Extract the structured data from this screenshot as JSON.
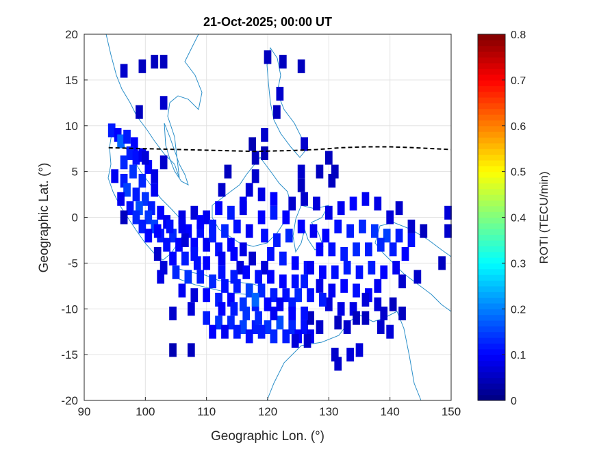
{
  "chart_data": {
    "type": "heatmap",
    "title": "21-Oct-2025; 00:00 UT",
    "xlabel": "Geographic Lon. (°)",
    "ylabel": "Geographic Lat. (°)",
    "xlim": [
      90,
      150
    ],
    "ylim": [
      -20,
      20
    ],
    "x_ticks": [
      "90",
      "100",
      "110",
      "120",
      "130",
      "140",
      "150"
    ],
    "y_ticks": [
      "20",
      "15",
      "10",
      "5",
      "0",
      "-5",
      "-10",
      "-15",
      "-20"
    ],
    "grid": true,
    "colorbar": {
      "label": "ROTI (TECU/min)",
      "range": [
        0,
        0.8
      ],
      "ticks": [
        "0.8",
        "0.7",
        "0.6",
        "0.5",
        "0.4",
        "0.3",
        "0.2",
        "0.1",
        "0"
      ],
      "colormap": "jet"
    },
    "colors": {
      "coastline": "#2b8fc9",
      "equator_line": "#000000",
      "grid": "#e3e3e3"
    },
    "dip_equator": {
      "style": "dashed",
      "lon": [
        94,
        100,
        106,
        112,
        118,
        124,
        128,
        132,
        136,
        140,
        144,
        150
      ],
      "lat": [
        7.6,
        7.5,
        7.4,
        7.3,
        7.2,
        7.3,
        7.4,
        7.6,
        7.7,
        7.7,
        7.6,
        7.4
      ]
    },
    "cell_size_deg": [
      1.2,
      1.5
    ],
    "cells": [
      [
        94.5,
        9.5,
        0.12
      ],
      [
        95.5,
        9.0,
        0.1
      ],
      [
        96.0,
        8.3,
        0.18
      ],
      [
        97.0,
        8.8,
        0.12
      ],
      [
        98.2,
        8.0,
        0.1
      ],
      [
        97.5,
        7.0,
        0.12
      ],
      [
        98.5,
        6.5,
        0.11
      ],
      [
        96.5,
        6.0,
        0.13
      ],
      [
        99.5,
        6.8,
        0.09
      ],
      [
        100.5,
        5.5,
        0.1
      ],
      [
        98.0,
        5.0,
        0.14
      ],
      [
        96.5,
        4.0,
        0.12
      ],
      [
        95.0,
        4.5,
        0.09
      ],
      [
        99.5,
        4.0,
        0.13
      ],
      [
        101.5,
        4.5,
        0.08
      ],
      [
        97.0,
        3.0,
        0.15
      ],
      [
        98.5,
        2.5,
        0.12
      ],
      [
        96.0,
        2.0,
        0.09
      ],
      [
        100.0,
        2.0,
        0.14
      ],
      [
        97.5,
        1.0,
        0.11
      ],
      [
        99.0,
        1.0,
        0.16
      ],
      [
        101.0,
        1.0,
        0.12
      ],
      [
        96.5,
        0.0,
        0.05
      ],
      [
        98.5,
        0.0,
        0.13
      ],
      [
        100.5,
        0.0,
        0.14
      ],
      [
        102.5,
        0.5,
        0.1
      ],
      [
        99.5,
        -1.0,
        0.12
      ],
      [
        101.5,
        -1.0,
        0.15
      ],
      [
        103.5,
        -0.5,
        0.09
      ],
      [
        100.5,
        -2.0,
        0.1
      ],
      [
        102.5,
        -2.0,
        0.12
      ],
      [
        104.5,
        -2.0,
        0.13
      ],
      [
        103.5,
        -3.0,
        0.11
      ],
      [
        105.5,
        -3.0,
        0.1
      ],
      [
        102.0,
        -4.0,
        0.06
      ],
      [
        104.5,
        -4.5,
        0.1
      ],
      [
        106.5,
        -4.5,
        0.12
      ],
      [
        108.5,
        -5.0,
        0.11
      ],
      [
        103.0,
        -5.5,
        0.07
      ],
      [
        105.0,
        -6.0,
        0.13
      ],
      [
        107.0,
        -6.5,
        0.14
      ],
      [
        109.0,
        -6.5,
        0.12
      ],
      [
        111.0,
        -7.0,
        0.13
      ],
      [
        113.0,
        -7.5,
        0.11
      ],
      [
        115.0,
        -7.5,
        0.12
      ],
      [
        117.0,
        -8.0,
        0.15
      ],
      [
        119.0,
        -8.0,
        0.13
      ],
      [
        121.0,
        -8.5,
        0.12
      ],
      [
        123.0,
        -8.5,
        0.11
      ],
      [
        125.0,
        -8.5,
        0.13
      ],
      [
        106.0,
        -8.0,
        0.09
      ],
      [
        108.0,
        -8.5,
        0.07
      ],
      [
        110.0,
        -8.5,
        0.1
      ],
      [
        112.0,
        -9.0,
        0.12
      ],
      [
        114.0,
        -9.0,
        0.1
      ],
      [
        116.0,
        -9.5,
        0.14
      ],
      [
        118.0,
        -9.5,
        0.12
      ],
      [
        120.0,
        -9.5,
        0.1
      ],
      [
        122.0,
        -9.5,
        0.09
      ],
      [
        124.0,
        -9.5,
        0.12
      ],
      [
        104.5,
        -10.5,
        0.06
      ],
      [
        107.5,
        -10.0,
        0.07
      ],
      [
        102.5,
        -6.5,
        0.08
      ],
      [
        110.0,
        -11.0,
        0.12
      ],
      [
        112.0,
        -11.5,
        0.14
      ],
      [
        114.0,
        -11.5,
        0.13
      ],
      [
        116.0,
        -12.0,
        0.15
      ],
      [
        118.0,
        -12.0,
        0.12
      ],
      [
        120.0,
        -12.0,
        0.14
      ],
      [
        122.0,
        -11.5,
        0.16
      ],
      [
        124.0,
        -12.0,
        0.13
      ],
      [
        126.0,
        -12.0,
        0.11
      ],
      [
        111.0,
        -12.5,
        0.1
      ],
      [
        113.0,
        -12.5,
        0.09
      ],
      [
        115.0,
        -12.5,
        0.12
      ],
      [
        117.0,
        -13.0,
        0.11
      ],
      [
        119.0,
        -12.5,
        0.12
      ],
      [
        121.0,
        -13.0,
        0.13
      ],
      [
        123.0,
        -13.0,
        0.12
      ],
      [
        125.0,
        -13.0,
        0.1
      ],
      [
        127.0,
        -13.0,
        0.09
      ],
      [
        124.5,
        -13.5,
        0.07
      ],
      [
        104.5,
        -14.5,
        0.04
      ],
      [
        107.5,
        -14.5,
        0.05
      ],
      [
        106.0,
        0.0,
        0.08
      ],
      [
        108.0,
        0.5,
        0.07
      ],
      [
        110.0,
        0.0,
        0.09
      ],
      [
        112.0,
        1.0,
        0.1
      ],
      [
        114.0,
        0.5,
        0.12
      ],
      [
        116.0,
        1.0,
        0.08
      ],
      [
        107.0,
        -1.5,
        0.1
      ],
      [
        109.0,
        -1.5,
        0.11
      ],
      [
        111.0,
        -1.0,
        0.12
      ],
      [
        113.0,
        -1.5,
        0.13
      ],
      [
        115.0,
        -1.0,
        0.11
      ],
      [
        117.0,
        -1.5,
        0.09
      ],
      [
        108.0,
        -3.0,
        0.1
      ],
      [
        110.0,
        -3.0,
        0.09
      ],
      [
        112.0,
        -3.5,
        0.11
      ],
      [
        114.0,
        -3.0,
        0.1
      ],
      [
        116.0,
        -3.5,
        0.08
      ],
      [
        106.5,
        -2.5,
        0.07
      ],
      [
        119.0,
        0.0,
        0.1
      ],
      [
        121.0,
        0.5,
        0.12
      ],
      [
        123.0,
        0.0,
        0.1
      ],
      [
        119.5,
        -2.0,
        0.11
      ],
      [
        121.5,
        -2.5,
        0.12
      ],
      [
        123.5,
        -2.0,
        0.13
      ],
      [
        125.5,
        -1.0,
        0.1
      ],
      [
        120.5,
        -4.0,
        0.11
      ],
      [
        122.5,
        -4.5,
        0.12
      ],
      [
        124.5,
        -5.0,
        0.1
      ],
      [
        126.5,
        -5.5,
        0.11
      ],
      [
        119.5,
        -5.5,
        0.07
      ],
      [
        117.5,
        -4.5,
        0.06
      ],
      [
        117.0,
        3.0,
        0.07
      ],
      [
        119.0,
        2.5,
        0.08
      ],
      [
        121.0,
        2.0,
        0.1
      ],
      [
        118.0,
        4.5,
        0.06
      ],
      [
        118.0,
        6.5,
        0.05
      ],
      [
        117.5,
        8.0,
        0.04
      ],
      [
        119.5,
        9.0,
        0.06
      ],
      [
        112.5,
        3.0,
        0.06
      ],
      [
        113.5,
        5.0,
        0.05
      ],
      [
        116.0,
        1.5,
        0.09
      ],
      [
        115.5,
        -5.5,
        0.07
      ],
      [
        127.5,
        -1.5,
        0.09
      ],
      [
        129.5,
        -2.0,
        0.1
      ],
      [
        131.5,
        -1.0,
        0.11
      ],
      [
        133.5,
        -1.5,
        0.12
      ],
      [
        135.5,
        -1.0,
        0.13
      ],
      [
        137.5,
        -1.5,
        0.14
      ],
      [
        139.5,
        -2.0,
        0.15
      ],
      [
        141.5,
        -2.0,
        0.12
      ],
      [
        143.5,
        -2.5,
        0.11
      ],
      [
        128.5,
        -3.5,
        0.1
      ],
      [
        130.5,
        -3.5,
        0.11
      ],
      [
        132.5,
        -4.0,
        0.12
      ],
      [
        134.5,
        -3.5,
        0.13
      ],
      [
        136.5,
        -3.5,
        0.12
      ],
      [
        138.5,
        -3.0,
        0.13
      ],
      [
        140.5,
        -3.5,
        0.12
      ],
      [
        142.5,
        -4.0,
        0.1
      ],
      [
        127.0,
        -5.5,
        0.09
      ],
      [
        129.0,
        -6.0,
        0.1
      ],
      [
        131.0,
        -6.0,
        0.11
      ],
      [
        133.0,
        -5.5,
        0.12
      ],
      [
        135.0,
        -6.0,
        0.11
      ],
      [
        137.0,
        -5.5,
        0.12
      ],
      [
        139.0,
        -6.0,
        0.1
      ],
      [
        141.0,
        -5.5,
        0.09
      ],
      [
        128.5,
        -7.5,
        0.08
      ],
      [
        130.5,
        -8.0,
        0.09
      ],
      [
        132.5,
        -7.5,
        0.1
      ],
      [
        134.5,
        -8.0,
        0.11
      ],
      [
        136.5,
        -8.5,
        0.1
      ],
      [
        138.0,
        -7.5,
        0.09
      ],
      [
        130.0,
        -9.5,
        0.07
      ],
      [
        132.0,
        -10.0,
        0.08
      ],
      [
        134.0,
        -10.0,
        0.08
      ],
      [
        136.0,
        -9.0,
        0.07
      ],
      [
        138.0,
        -9.5,
        0.07
      ],
      [
        130.0,
        0.5,
        0.08
      ],
      [
        132.0,
        1.0,
        0.09
      ],
      [
        134.0,
        1.5,
        0.1
      ],
      [
        136.0,
        2.0,
        0.09
      ],
      [
        138.0,
        1.5,
        0.08
      ],
      [
        140.0,
        0.0,
        0.07
      ],
      [
        128.0,
        1.5,
        0.07
      ],
      [
        126.0,
        2.0,
        0.06
      ],
      [
        124.0,
        1.5,
        0.06
      ],
      [
        141.5,
        1.0,
        0.06
      ],
      [
        143.5,
        -1.0,
        0.06
      ],
      [
        145.5,
        -1.5,
        0.05
      ],
      [
        149.5,
        0.5,
        0.07
      ],
      [
        149.5,
        -1.5,
        0.06
      ],
      [
        148.5,
        -5.0,
        0.05
      ],
      [
        144.5,
        -6.5,
        0.06
      ],
      [
        142.0,
        -7.0,
        0.06
      ],
      [
        140.5,
        -9.5,
        0.05
      ],
      [
        139.0,
        -10.5,
        0.06
      ],
      [
        142.0,
        -10.5,
        0.05
      ],
      [
        136.0,
        -11.0,
        0.05
      ],
      [
        134.5,
        -11.0,
        0.05
      ],
      [
        131.5,
        -11.5,
        0.05
      ],
      [
        133.0,
        -12.0,
        0.06
      ],
      [
        138.5,
        -12.0,
        0.06
      ],
      [
        140.0,
        -12.5,
        0.07
      ],
      [
        131.0,
        -15.0,
        0.06
      ],
      [
        131.5,
        -16.0,
        0.06
      ],
      [
        133.5,
        -15.0,
        0.07
      ],
      [
        135.0,
        -14.5,
        0.07
      ],
      [
        130.5,
        4.0,
        0.05
      ],
      [
        131.0,
        5.0,
        0.05
      ],
      [
        128.5,
        5.0,
        0.05
      ],
      [
        130.0,
        6.5,
        0.05
      ],
      [
        125.5,
        3.5,
        0.05
      ],
      [
        125.5,
        5.0,
        0.06
      ],
      [
        119.5,
        7.0,
        0.04
      ],
      [
        120.0,
        17.5,
        0.05
      ],
      [
        122.5,
        17.0,
        0.05
      ],
      [
        125.5,
        16.5,
        0.05
      ],
      [
        122.0,
        13.5,
        0.06
      ],
      [
        121.5,
        11.5,
        0.05
      ],
      [
        126.0,
        8.0,
        0.06
      ],
      [
        128.5,
        -12.0,
        0.06
      ],
      [
        127.0,
        -11.0,
        0.05
      ],
      [
        126.5,
        -13.5,
        0.06
      ],
      [
        96.5,
        16.0,
        0.06
      ],
      [
        99.5,
        16.5,
        0.05
      ],
      [
        101.5,
        17.0,
        0.05
      ],
      [
        103.0,
        17.0,
        0.05
      ],
      [
        103.0,
        12.5,
        0.06
      ],
      [
        99.0,
        11.5,
        0.05
      ],
      [
        103.0,
        6.0,
        0.06
      ],
      [
        100.0,
        6.5,
        0.07
      ],
      [
        101.5,
        3.0,
        0.09
      ],
      [
        102.0,
        -1.5,
        0.1
      ],
      [
        104.0,
        -1.0,
        0.11
      ],
      [
        106.0,
        -1.0,
        0.09
      ],
      [
        109.0,
        -0.5,
        0.1
      ],
      [
        111.0,
        -2.0,
        0.12
      ],
      [
        112.5,
        -4.5,
        0.09
      ],
      [
        114.5,
        -4.0,
        0.1
      ],
      [
        108.0,
        -4.0,
        0.11
      ],
      [
        110.0,
        -5.0,
        0.1
      ],
      [
        112.5,
        -6.0,
        0.11
      ],
      [
        114.5,
        -6.5,
        0.12
      ],
      [
        116.5,
        -6.0,
        0.1
      ],
      [
        118.5,
        -6.5,
        0.11
      ],
      [
        120.5,
        -6.5,
        0.1
      ],
      [
        122.5,
        -7.0,
        0.1
      ],
      [
        124.5,
        -7.0,
        0.11
      ],
      [
        126.0,
        -7.0,
        0.12
      ],
      [
        127.0,
        -8.5,
        0.11
      ],
      [
        129.0,
        -9.0,
        0.12
      ],
      [
        126.0,
        -10.5,
        0.11
      ],
      [
        124.0,
        -10.5,
        0.1
      ],
      [
        121.0,
        -10.5,
        0.09
      ],
      [
        118.5,
        -11.0,
        0.13
      ],
      [
        116.5,
        -10.5,
        0.14
      ],
      [
        114.5,
        -10.0,
        0.12
      ],
      [
        112.5,
        -10.0,
        0.1
      ],
      [
        118.0,
        -9.0,
        0.18
      ]
    ]
  }
}
